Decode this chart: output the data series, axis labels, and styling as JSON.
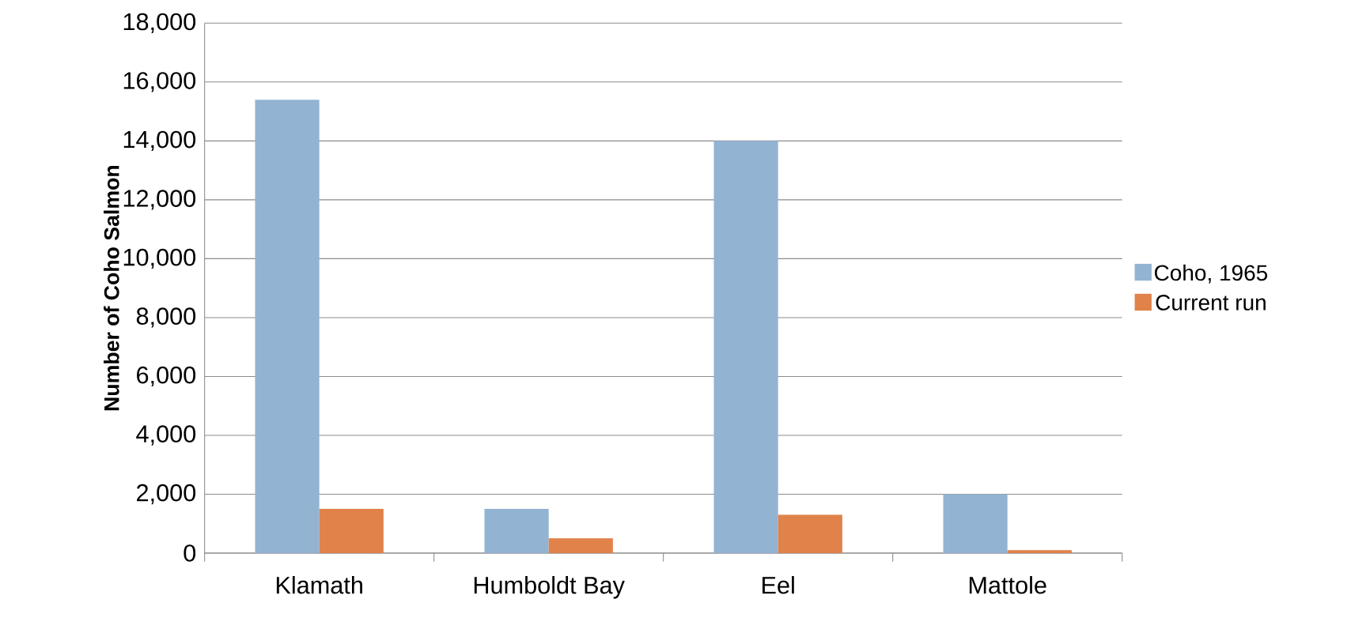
{
  "chart_data": {
    "type": "bar",
    "ylabel": "Number of Coho Salmon",
    "categories": [
      "Klamath",
      "Humboldt Bay",
      "Eel",
      "Mattole"
    ],
    "series": [
      {
        "name": "Coho, 1965",
        "color": "#93b3d3",
        "values": [
          15400,
          1500,
          14000,
          2000
        ]
      },
      {
        "name": "Current run",
        "color": "#e0824a",
        "values": [
          1500,
          500,
          1300,
          100
        ]
      }
    ],
    "ylim": [
      0,
      18000
    ],
    "yticks": [
      0,
      {
        "value": 2000,
        "label": "2,000"
      },
      {
        "value": 4000,
        "label": "4,000"
      },
      {
        "value": 6000,
        "label": "6,000"
      },
      {
        "value": 8000,
        "label": "8,000"
      },
      {
        "value": 10000,
        "label": "10,000"
      },
      {
        "value": 12000,
        "label": "12,000"
      },
      {
        "value": 14000,
        "label": "14,000"
      },
      {
        "value": 16000,
        "label": "16,000"
      },
      {
        "value": 18000,
        "label": "18,000"
      }
    ],
    "grid": "y",
    "legend": "right"
  }
}
